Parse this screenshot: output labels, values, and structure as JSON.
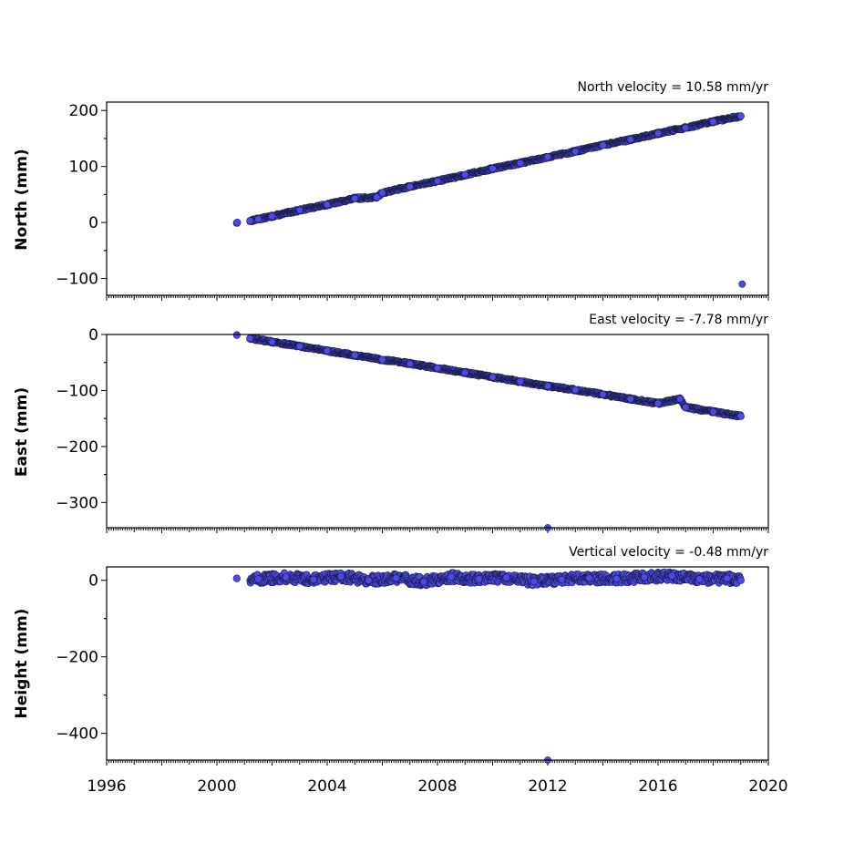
{
  "chart_data": [
    {
      "type": "scatter",
      "title": "North velocity = 10.58 mm/yr",
      "ylabel": "North (mm)",
      "xlabel": "",
      "xlim": [
        1996,
        2020
      ],
      "ylim": [
        -130,
        215
      ],
      "yticks": [
        -100,
        0,
        100,
        200
      ],
      "ytick_labels": [
        "−100",
        "0",
        "100",
        "200"
      ],
      "x": [
        2000.72,
        2000.74,
        2001.2,
        2001.5,
        2002.0,
        2003.0,
        2004.0,
        2005.0,
        2005.8,
        2006.0,
        2007.0,
        2008.0,
        2009.0,
        2010.0,
        2011.0,
        2012.0,
        2013.0,
        2014.0,
        2015.0,
        2016.0,
        2017.0,
        2018.0,
        2019.0,
        2019.05
      ],
      "y": [
        -1,
        0,
        3,
        6,
        11,
        22,
        32,
        43,
        45,
        53,
        64,
        74,
        85,
        96,
        106,
        117,
        127,
        138,
        148,
        159,
        169,
        180,
        190,
        -110
      ]
    },
    {
      "type": "scatter",
      "title": "East velocity = -7.78 mm/yr",
      "ylabel": "East (mm)",
      "xlabel": "",
      "xlim": [
        1996,
        2020
      ],
      "ylim": [
        -345,
        0
      ],
      "yticks": [
        -300,
        -200,
        -100,
        0
      ],
      "ytick_labels": [
        "−300",
        "−200",
        "−100",
        "0"
      ],
      "x": [
        2000.72,
        2001.2,
        2002.0,
        2003.0,
        2004.0,
        2005.0,
        2006.0,
        2007.0,
        2008.0,
        2009.0,
        2010.0,
        2011.0,
        2012.0,
        2013.0,
        2014.0,
        2015.0,
        2016.0,
        2016.8,
        2017.0,
        2018.0,
        2019.0,
        2012.0
      ],
      "y": [
        -1,
        -7,
        -13,
        -21,
        -29,
        -37,
        -45,
        -52,
        -60,
        -68,
        -76,
        -84,
        -92,
        -99,
        -107,
        -115,
        -123,
        -115,
        -130,
        -138,
        -146,
        -345
      ]
    },
    {
      "type": "scatter",
      "title": "Vertical velocity = -0.48 mm/yr",
      "ylabel": "Height (mm)",
      "xlabel": "",
      "xlim": [
        1996,
        2020
      ],
      "ylim": [
        -470,
        35
      ],
      "yticks": [
        -400,
        -200,
        0
      ],
      "ytick_labels": [
        "−400",
        "−200",
        "0"
      ],
      "xticks": [
        1996,
        2000,
        2004,
        2008,
        2012,
        2016,
        2020
      ],
      "xtick_labels": [
        "1996",
        "2000",
        "2004",
        "2008",
        "2012",
        "2016",
        "2020"
      ],
      "x": [
        2000.72,
        2001.5,
        2002.5,
        2003.5,
        2004.5,
        2005.5,
        2006.5,
        2007.5,
        2008.5,
        2009.5,
        2010.5,
        2011.5,
        2012.5,
        2013.5,
        2014.5,
        2015.5,
        2016.5,
        2017.5,
        2018.5,
        2019.0,
        2012.0
      ],
      "y": [
        5,
        3,
        8,
        2,
        10,
        0,
        6,
        -4,
        9,
        3,
        7,
        -3,
        2,
        6,
        4,
        8,
        12,
        3,
        5,
        0,
        -470
      ]
    }
  ],
  "colors": {
    "marker_fill": "#4a4aee",
    "marker_edge": "#1a1a40"
  }
}
